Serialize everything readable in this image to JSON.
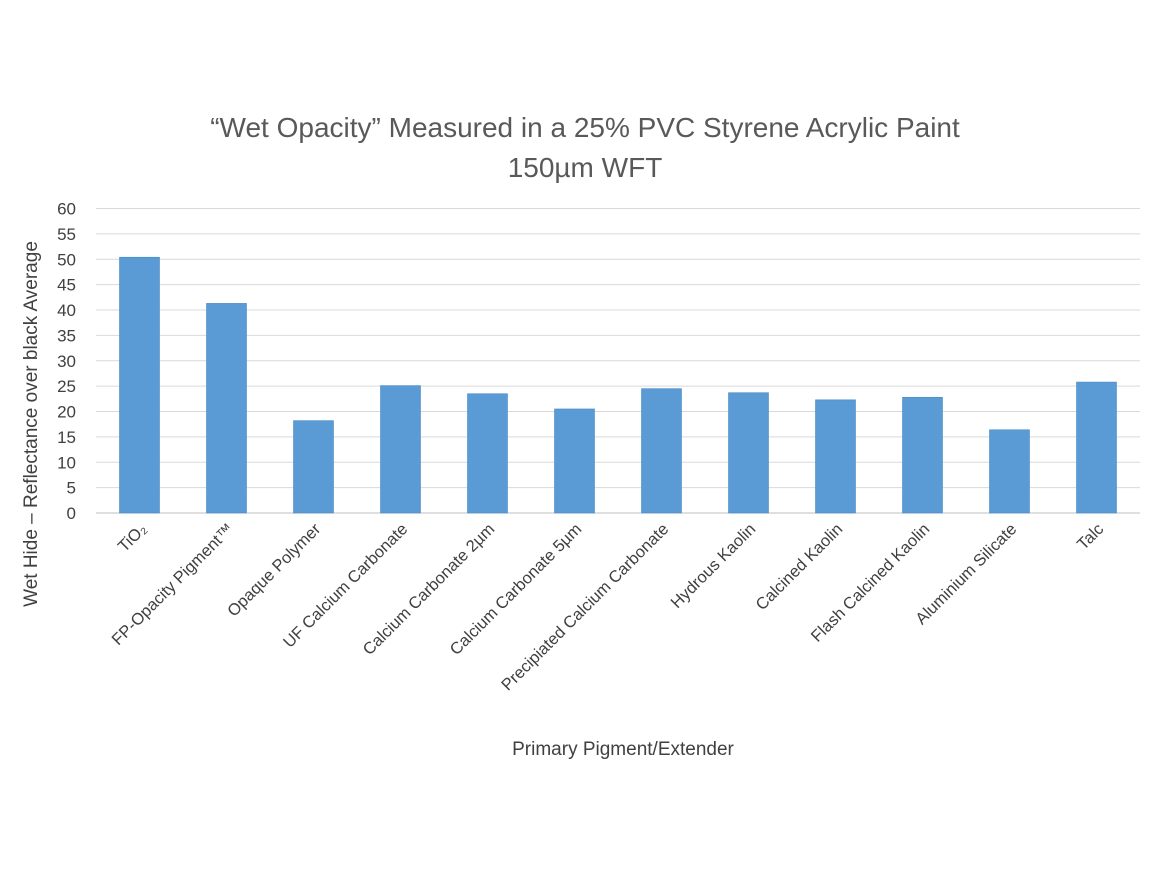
{
  "chart_data": {
    "type": "bar",
    "title": "“Wet Opacity” Measured in a 25% PVC Styrene Acrylic Paint",
    "subtitle": "150µm WFT",
    "xlabel": "Primary Pigment/Extender",
    "ylabel": "Wet Hide – Reflectance over black Average",
    "ylim": [
      0,
      60
    ],
    "yticks": [
      0,
      5,
      10,
      15,
      20,
      25,
      30,
      35,
      40,
      45,
      50,
      55,
      60
    ],
    "grid": true,
    "legend": "none",
    "bar_color": "#5b9bd5",
    "categories": [
      "TiO₂",
      "FP-Opacity Pigment™",
      "Opaque Polymer",
      "UF Calcium Carbonate",
      "Calcium Carbonate 2µm",
      "Calcium Carbonate 5µm",
      "Precipiated Calcium Carbonate",
      "Hydrous Kaolin",
      "Calcined Kaolin",
      "Flash Calcined Kaolin",
      "Aluminium Silicate",
      "Talc"
    ],
    "values": [
      50.4,
      41.3,
      18.2,
      25.1,
      23.5,
      20.5,
      24.5,
      23.7,
      22.3,
      22.8,
      16.4,
      25.8
    ]
  }
}
